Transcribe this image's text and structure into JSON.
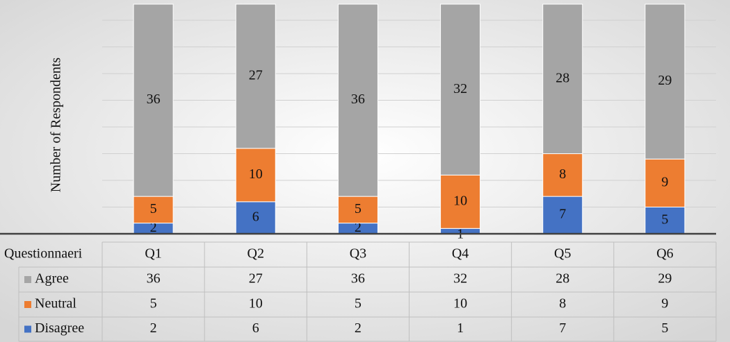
{
  "chart_data": {
    "type": "bar",
    "stacked": true,
    "y_axis_title": "Number of Respondents",
    "table_header": "Questionnaeri",
    "categories": [
      "Q1",
      "Q2",
      "Q3",
      "Q4",
      "Q5",
      "Q6"
    ],
    "series": [
      {
        "name": "Agree",
        "color": "#a5a5a5",
        "values": [
          36,
          27,
          36,
          32,
          28,
          29
        ]
      },
      {
        "name": "Neutral",
        "color": "#ed7d31",
        "values": [
          5,
          10,
          5,
          10,
          8,
          9
        ]
      },
      {
        "name": "Disagree",
        "color": "#4472c4",
        "values": [
          2,
          6,
          2,
          1,
          7,
          5
        ]
      }
    ],
    "ylim": [
      0,
      43
    ],
    "yticks": [
      0,
      5,
      10,
      15,
      20,
      25,
      30,
      35,
      40
    ],
    "grid": true
  }
}
